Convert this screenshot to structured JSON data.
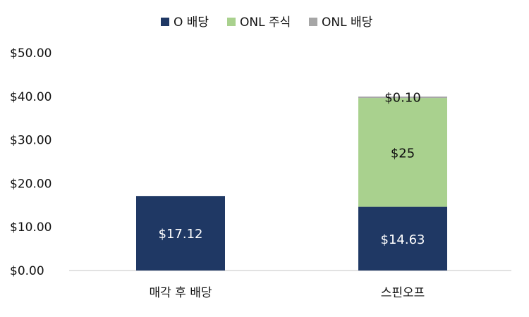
{
  "chart_data": {
    "type": "bar",
    "stacked": true,
    "categories": [
      "매각 후 배당",
      "스핀오프"
    ],
    "series": [
      {
        "name": "O 배당",
        "values": [
          17.12,
          14.63
        ],
        "labels": [
          "$17.12",
          "$14.63"
        ],
        "color": "#1f3864",
        "label_color": "#ffffff"
      },
      {
        "name": "ONL 주식",
        "values": [
          0,
          25
        ],
        "labels": [
          "",
          "$25"
        ],
        "color": "#a9d18e",
        "label_color": "#111111"
      },
      {
        "name": "ONL 배당",
        "values": [
          0,
          0.1
        ],
        "labels": [
          "",
          "$0.10"
        ],
        "color": "#a6a6a6",
        "label_color": "#111111"
      }
    ],
    "y_ticks": [
      "$0.00",
      "$10.00",
      "$20.00",
      "$30.00",
      "$40.00",
      "$50.00"
    ],
    "ylim": [
      0,
      50
    ],
    "grid": false,
    "legend_position": "top-center"
  }
}
